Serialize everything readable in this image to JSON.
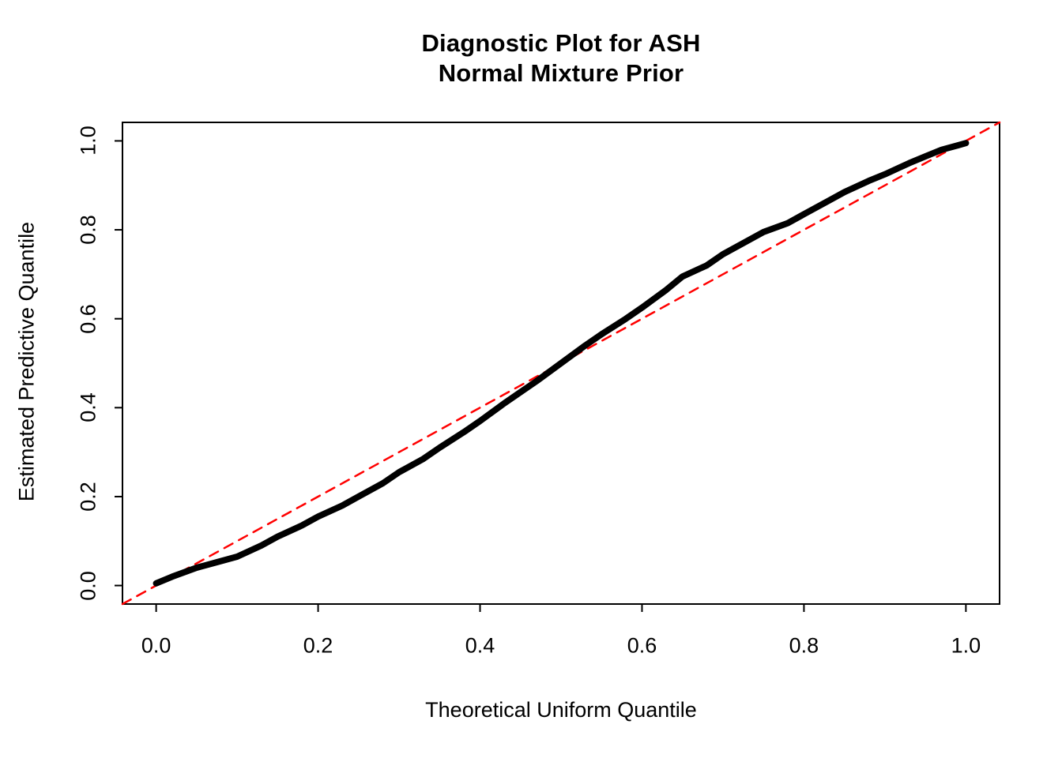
{
  "chart": {
    "title_line1": "Diagnostic Plot for ASH",
    "title_line2": "Normal Mixture Prior"
  },
  "chart_data": {
    "type": "line",
    "title": "Diagnostic Plot for ASH / Normal Mixture Prior",
    "xlabel": "Theoretical Uniform Quantile",
    "ylabel": "Estimated Predictive Quantile",
    "xlim": [
      -0.0416,
      1.0416
    ],
    "ylim": [
      -0.0416,
      1.0416
    ],
    "grid": false,
    "legend": "none",
    "x_ticks": [
      0.0,
      0.2,
      0.4,
      0.6,
      0.8,
      1.0
    ],
    "y_ticks": [
      0.0,
      0.2,
      0.4,
      0.6,
      0.8,
      1.0
    ],
    "x_tick_labels": [
      "0.0",
      "0.2",
      "0.4",
      "0.6",
      "0.8",
      "1.0"
    ],
    "y_tick_labels": [
      "0.0",
      "0.2",
      "0.4",
      "0.6",
      "0.8",
      "1.0"
    ],
    "series": [
      {
        "name": "estimated-predictive-quantile-curve",
        "color": "#000000",
        "style": "solid",
        "width": 8,
        "dash": "none",
        "x": [
          0.0,
          0.02,
          0.05,
          0.08,
          0.1,
          0.13,
          0.15,
          0.18,
          0.2,
          0.23,
          0.25,
          0.28,
          0.3,
          0.33,
          0.35,
          0.38,
          0.4,
          0.43,
          0.45,
          0.47,
          0.5,
          0.53,
          0.55,
          0.58,
          0.6,
          0.63,
          0.65,
          0.68,
          0.7,
          0.73,
          0.75,
          0.78,
          0.8,
          0.83,
          0.85,
          0.88,
          0.9,
          0.93,
          0.95,
          0.97,
          0.99,
          1.0
        ],
        "y": [
          0.005,
          0.02,
          0.04,
          0.055,
          0.065,
          0.09,
          0.11,
          0.135,
          0.155,
          0.18,
          0.2,
          0.23,
          0.255,
          0.285,
          0.31,
          0.345,
          0.37,
          0.41,
          0.435,
          0.46,
          0.5,
          0.54,
          0.565,
          0.6,
          0.625,
          0.665,
          0.695,
          0.72,
          0.745,
          0.775,
          0.795,
          0.815,
          0.835,
          0.865,
          0.885,
          0.91,
          0.925,
          0.95,
          0.965,
          0.98,
          0.99,
          0.995
        ]
      },
      {
        "name": "identity-reference-line",
        "color": "#FF0000",
        "style": "dashed",
        "width": 2.5,
        "dash": "12 9",
        "x": [
          -0.0416,
          1.0416
        ],
        "y": [
          -0.0416,
          1.0416
        ]
      }
    ]
  }
}
